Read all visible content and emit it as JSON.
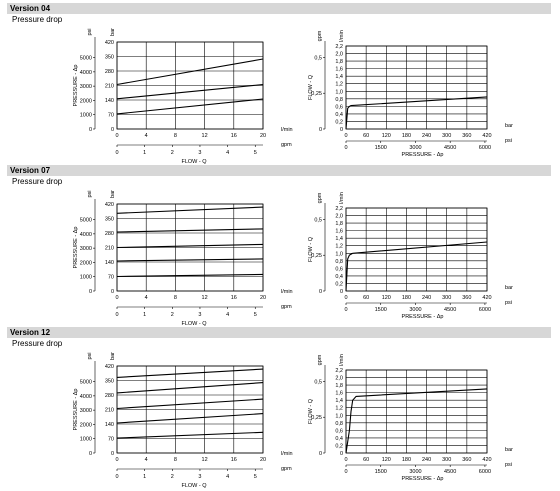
{
  "sections": [
    {
      "title": "Version 04",
      "subtitle": "Pressure drop"
    },
    {
      "title": "Version 07",
      "subtitle": "Pressure drop"
    },
    {
      "title": "Version 12",
      "subtitle": "Pressure drop"
    }
  ],
  "chart_data": [
    {
      "type": "line",
      "chart": "pressure-vs-flow",
      "version": "04",
      "xlabel": "FLOW - Q",
      "ylabel": "PRESSURE - Δp",
      "x_primary_unit": "l/min",
      "x_secondary_unit": "gpm",
      "y_primary_unit": "bar",
      "y_secondary_unit": "psi",
      "x_ticks": [
        0,
        4,
        8,
        12,
        16,
        20
      ],
      "x_secondary_ticks": [
        0,
        1,
        2,
        3,
        4,
        5
      ],
      "y_ticks": [
        0,
        70,
        140,
        210,
        280,
        350,
        420
      ],
      "y_secondary_ticks": [
        0,
        1000,
        2000,
        3000,
        4000,
        5000
      ],
      "xlim": [
        0,
        20
      ],
      "ylim": [
        0,
        420
      ],
      "grid": true,
      "series": [
        {
          "x": [
            0,
            20
          ],
          "y": [
            73,
            145
          ]
        },
        {
          "x": [
            0,
            20
          ],
          "y": [
            146,
            215
          ]
        },
        {
          "x": [
            0,
            20
          ],
          "y": [
            215,
            338
          ]
        }
      ]
    },
    {
      "type": "line",
      "chart": "flow-vs-pressure",
      "version": "04",
      "xlabel": "PRESSURE - Δp",
      "ylabel": "FLOW - Q",
      "x_primary_unit": "bar",
      "x_secondary_unit": "psi",
      "y_primary_unit": "l/min",
      "y_secondary_unit": "gpm",
      "x_ticks": [
        0,
        60,
        120,
        180,
        240,
        300,
        360,
        420
      ],
      "x_secondary_ticks": [
        0,
        1500,
        3000,
        4500,
        6000
      ],
      "y_ticks": [
        "0",
        "0,2",
        "0,4",
        "0,6",
        "0,8",
        "1,0",
        "1,2",
        "1,4",
        "1,6",
        "1,8",
        "2,0",
        "2,2"
      ],
      "y_secondary_ticks": [
        "0",
        "0,25",
        "0,5"
      ],
      "xlim": [
        0,
        420
      ],
      "ylim": [
        0,
        2.2
      ],
      "grid": true,
      "series": [
        {
          "x": [
            0,
            5,
            10,
            15,
            420
          ],
          "y": [
            0,
            0.55,
            0.6,
            0.62,
            0.85
          ]
        }
      ]
    },
    {
      "type": "line",
      "chart": "pressure-vs-flow",
      "version": "07",
      "xlabel": "FLOW - Q",
      "ylabel": "PRESSURE - Δp",
      "x_primary_unit": "l/min",
      "x_secondary_unit": "gpm",
      "y_primary_unit": "bar",
      "y_secondary_unit": "psi",
      "x_ticks": [
        0,
        4,
        8,
        12,
        16,
        20
      ],
      "x_secondary_ticks": [
        0,
        1,
        2,
        3,
        4,
        5
      ],
      "y_ticks": [
        0,
        70,
        140,
        210,
        280,
        350,
        420
      ],
      "y_secondary_ticks": [
        0,
        1000,
        2000,
        3000,
        4000,
        5000
      ],
      "xlim": [
        0,
        20
      ],
      "ylim": [
        0,
        420
      ],
      "grid": true,
      "series": [
        {
          "x": [
            0,
            20
          ],
          "y": [
            70,
            80
          ]
        },
        {
          "x": [
            0,
            20
          ],
          "y": [
            145,
            155
          ]
        },
        {
          "x": [
            0,
            20
          ],
          "y": [
            210,
            225
          ]
        },
        {
          "x": [
            0,
            20
          ],
          "y": [
            285,
            300
          ]
        },
        {
          "x": [
            0,
            20
          ],
          "y": [
            375,
            405
          ]
        }
      ]
    },
    {
      "type": "line",
      "chart": "flow-vs-pressure",
      "version": "07",
      "xlabel": "PRESSURE - Δp",
      "ylabel": "FLOW - Q",
      "x_primary_unit": "bar",
      "x_secondary_unit": "psi",
      "y_primary_unit": "l/min",
      "y_secondary_unit": "gpm",
      "x_ticks": [
        0,
        60,
        120,
        180,
        240,
        300,
        360,
        420
      ],
      "x_secondary_ticks": [
        0,
        1500,
        3000,
        4500,
        6000
      ],
      "y_ticks": [
        "0",
        "0,2",
        "0,4",
        "0,6",
        "0,8",
        "1,0",
        "1,2",
        "1,4",
        "1,6",
        "1,8",
        "2,0",
        "2,2"
      ],
      "y_secondary_ticks": [
        "0",
        "0,25",
        "0,5"
      ],
      "xlim": [
        0,
        420
      ],
      "ylim": [
        0,
        2.2
      ],
      "grid": true,
      "series": [
        {
          "x": [
            0,
            5,
            10,
            20,
            420
          ],
          "y": [
            0,
            0.85,
            0.95,
            1.0,
            1.3
          ]
        }
      ]
    },
    {
      "type": "line",
      "chart": "pressure-vs-flow",
      "version": "12",
      "xlabel": "FLOW - Q",
      "ylabel": "PRESSURE - Δp",
      "x_primary_unit": "l/min",
      "x_secondary_unit": "gpm",
      "y_primary_unit": "bar",
      "y_secondary_unit": "psi",
      "x_ticks": [
        0,
        4,
        8,
        12,
        16,
        20
      ],
      "x_secondary_ticks": [
        0,
        1,
        2,
        3,
        4,
        5
      ],
      "y_ticks": [
        0,
        70,
        140,
        210,
        280,
        350,
        420
      ],
      "y_secondary_ticks": [
        0,
        1000,
        2000,
        3000,
        4000,
        5000
      ],
      "xlim": [
        0,
        20
      ],
      "ylim": [
        0,
        420
      ],
      "grid": true,
      "series": [
        {
          "x": [
            0,
            20
          ],
          "y": [
            72,
            100
          ]
        },
        {
          "x": [
            0,
            20
          ],
          "y": [
            145,
            190
          ]
        },
        {
          "x": [
            0,
            20
          ],
          "y": [
            215,
            260
          ]
        },
        {
          "x": [
            0,
            20
          ],
          "y": [
            290,
            340
          ]
        },
        {
          "x": [
            0,
            20
          ],
          "y": [
            365,
            405
          ]
        }
      ]
    },
    {
      "type": "line",
      "chart": "flow-vs-pressure",
      "version": "12",
      "xlabel": "PRESSURE - Δp",
      "ylabel": "FLOW - Q",
      "x_primary_unit": "bar",
      "x_secondary_unit": "psi",
      "y_primary_unit": "l/min",
      "y_secondary_unit": "gpm",
      "x_ticks": [
        0,
        60,
        120,
        180,
        240,
        300,
        360,
        420
      ],
      "x_secondary_ticks": [
        0,
        1500,
        3000,
        4500,
        6000
      ],
      "y_ticks": [
        "0",
        "0,2",
        "0,4",
        "0,6",
        "0,8",
        "1,0",
        "1,2",
        "1,4",
        "1,6",
        "1,8",
        "2,0",
        "2,2"
      ],
      "y_secondary_ticks": [
        "0",
        "0,25",
        "0,5"
      ],
      "xlim": [
        0,
        420
      ],
      "ylim": [
        0,
        2.2
      ],
      "grid": true,
      "series": [
        {
          "x": [
            0,
            10,
            15,
            20,
            30,
            420
          ],
          "y": [
            0,
            0.6,
            1.1,
            1.4,
            1.5,
            1.7
          ]
        }
      ]
    }
  ]
}
